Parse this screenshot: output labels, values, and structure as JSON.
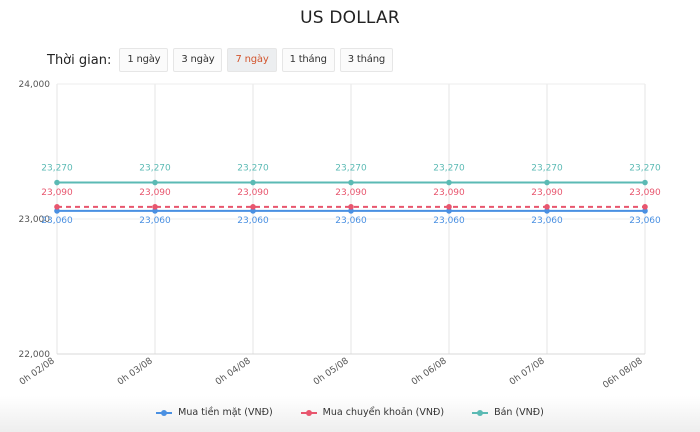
{
  "header": {
    "title": "US DOLLAR"
  },
  "period": {
    "label": "Thời gian:",
    "options": [
      "1 ngày",
      "3 ngày",
      "7 ngày",
      "1 tháng",
      "3 tháng"
    ],
    "selected": "7 ngày"
  },
  "legend": [
    {
      "label": "Mua tiền mặt (VNĐ)",
      "color": "#4a90e2"
    },
    {
      "label": "Mua chuyển khoản (VNĐ)",
      "color": "#e8566e"
    },
    {
      "label": "Bán (VNĐ)",
      "color": "#5bbab4"
    }
  ],
  "chart_data": {
    "type": "line",
    "title": "US DOLLAR",
    "xlabel": "",
    "ylabel": "",
    "ylim": [
      22000,
      24000
    ],
    "yticks": [
      "22,000",
      "23,000",
      "24,000"
    ],
    "categories": [
      "0h 02/08",
      "0h 03/08",
      "0h 04/08",
      "0h 05/08",
      "0h 06/08",
      "0h 07/08",
      "06h 08/08"
    ],
    "series": [
      {
        "name": "Mua tiền mặt (VNĐ)",
        "color": "#4a90e2",
        "style": "solid",
        "values": [
          23060,
          23060,
          23060,
          23060,
          23060,
          23060,
          23060
        ],
        "labels": [
          "23,060",
          "23,060",
          "23,060",
          "23,060",
          "23,060",
          "23,060",
          "23,060"
        ]
      },
      {
        "name": "Mua chuyển khoản (VNĐ)",
        "color": "#e8566e",
        "style": "dashed",
        "values": [
          23090,
          23090,
          23090,
          23090,
          23090,
          23090,
          23090
        ],
        "labels": [
          "23,090",
          "23,090",
          "23,090",
          "23,090",
          "23,090",
          "23,090",
          "23,090"
        ]
      },
      {
        "name": "Bán (VNĐ)",
        "color": "#5bbab4",
        "style": "solid",
        "values": [
          23270,
          23270,
          23270,
          23270,
          23270,
          23270,
          23270
        ],
        "labels": [
          "23,270",
          "23,270",
          "23,270",
          "23,270",
          "23,270",
          "23,270",
          "23,270"
        ]
      }
    ],
    "grid": true,
    "legend_position": "bottom"
  }
}
